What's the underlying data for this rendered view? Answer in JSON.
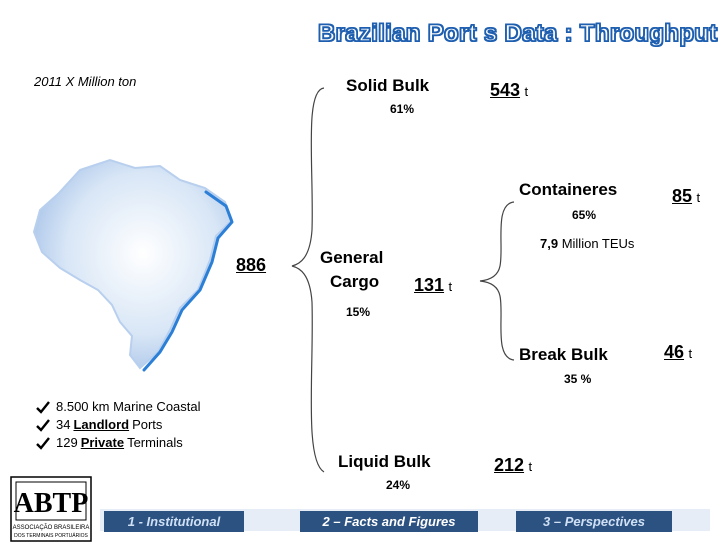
{
  "title": "Brazilian Port s Data : Throughput",
  "subtitle": "2011 X Million ton",
  "total": "886",
  "unit": "t",
  "solid_bulk": {
    "label": "Solid Bulk",
    "pct": "61%",
    "value": "543"
  },
  "general_cargo": {
    "label_line1": "General",
    "label_line2": "Cargo",
    "pct": "15%",
    "value": "131"
  },
  "liquid_bulk": {
    "label": "Liquid Bulk",
    "pct": "24%",
    "value": "212"
  },
  "containers": {
    "label": "Containeres",
    "pct": "65%",
    "value": "85",
    "teu_value": "7,9",
    "teu_text": "Million TEUs"
  },
  "break_bulk": {
    "label": "Break Bulk",
    "pct": "35 %",
    "value": "46"
  },
  "facts": [
    {
      "pre": "8.500 km Marine Coastal",
      "bold": "",
      "post": ""
    },
    {
      "pre": "34 ",
      "bold": "Landlord",
      "post": " Ports"
    },
    {
      "pre": "129 ",
      "bold": "Private",
      "post": " Terminals"
    }
  ],
  "footer": {
    "tab1": "1 - Institutional",
    "tab2": "2 – Facts and Figures",
    "tab3": "3 – Perspectives"
  },
  "colors": {
    "accent": "#1f5fb0",
    "footer": "#2c5282"
  }
}
